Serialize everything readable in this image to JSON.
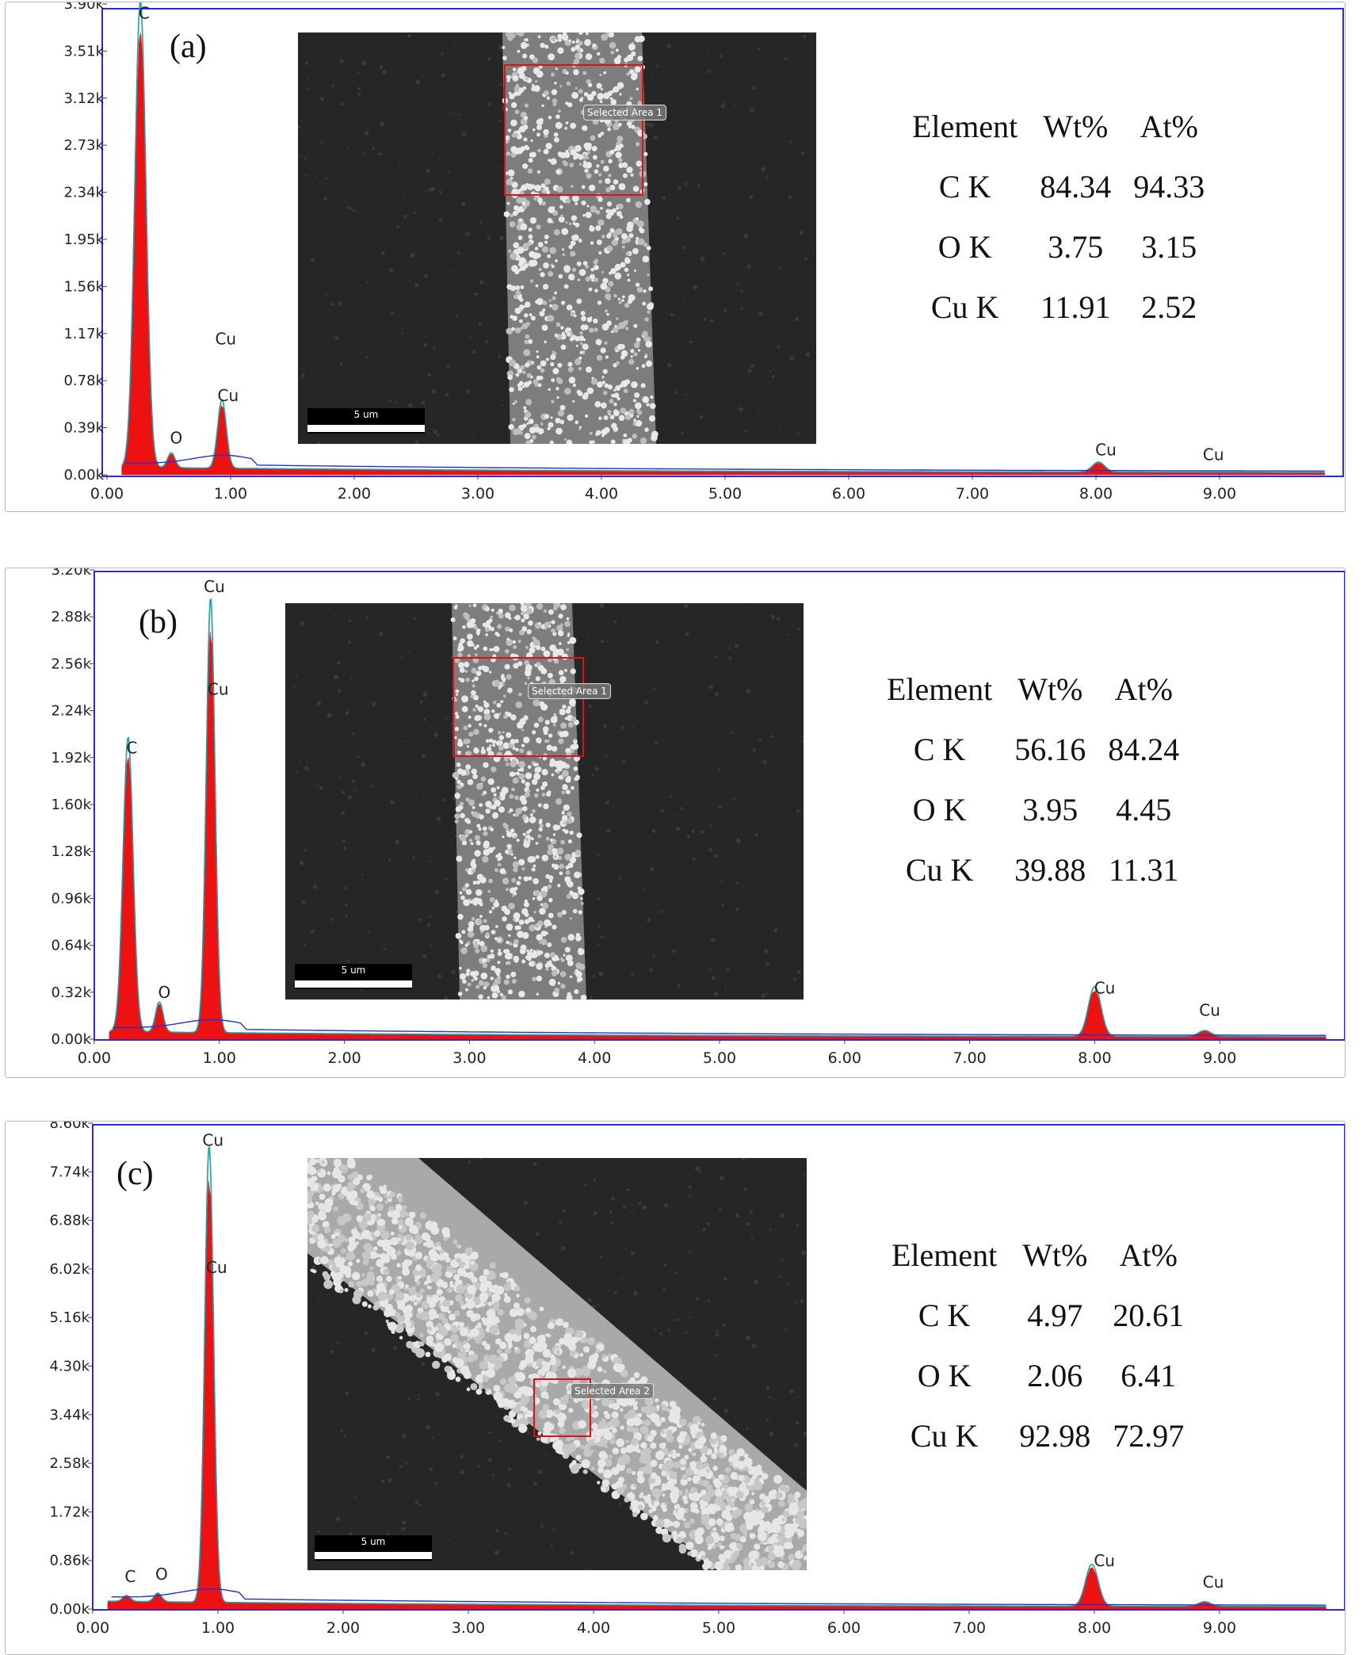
{
  "chart_data": [
    {
      "type": "area",
      "panel_label": "(a)",
      "x_ticks": [
        "0.00",
        "1.00",
        "2.00",
        "3.00",
        "4.00",
        "5.00",
        "6.00",
        "7.00",
        "8.00",
        "9.00"
      ],
      "y_ticks": [
        "0.00k",
        "0.39k",
        "0.78k",
        "1.17k",
        "1.56k",
        "1.95k",
        "2.34k",
        "2.73k",
        "3.12k",
        "3.51k",
        "3.90k"
      ],
      "xlim": [
        0,
        10
      ],
      "ylim": [
        0,
        3.9
      ],
      "peaks": [
        {
          "element": "C",
          "x": 0.27,
          "y": 3.75,
          "width": 0.045
        },
        {
          "element": "O",
          "x": 0.52,
          "y": 0.12,
          "width": 0.03
        },
        {
          "element": "Cu",
          "x": 0.93,
          "y": 0.55,
          "width": 0.035
        },
        {
          "element": "Cu",
          "x": 8.02,
          "y": 0.08,
          "width": 0.05
        }
      ],
      "peak_labels": [
        {
          "text": "C",
          "x": 0.3,
          "y": 3.78
        },
        {
          "text": "O",
          "x": 0.56,
          "y": 0.26
        },
        {
          "text": "Cu",
          "x": 0.96,
          "y": 1.08
        },
        {
          "text": "Cu",
          "x": 0.98,
          "y": 0.61
        },
        {
          "text": "Cu",
          "x": 8.08,
          "y": 0.16
        },
        {
          "text": "Cu",
          "x": 8.95,
          "y": 0.12
        }
      ],
      "table": {
        "headers": [
          "Element",
          "Wt%",
          "At%"
        ],
        "rows": [
          [
            "C K",
            "84.34",
            "94.33"
          ],
          [
            "O K",
            "3.75",
            "3.15"
          ],
          [
            "Cu K",
            "11.91",
            "2.52"
          ]
        ]
      },
      "image": {
        "selection_label": "Selected Area 1",
        "scale_label": "5 um",
        "texture": "particles-fiber"
      }
    },
    {
      "type": "area",
      "panel_label": "(b)",
      "x_ticks": [
        "0.00",
        "1.00",
        "2.00",
        "3.00",
        "4.00",
        "5.00",
        "6.00",
        "7.00",
        "8.00",
        "9.00"
      ],
      "y_ticks": [
        "0.00k",
        "0.32k",
        "0.64k",
        "0.96k",
        "1.28k",
        "1.60k",
        "1.92k",
        "2.24k",
        "2.56k",
        "2.88k",
        "3.20k"
      ],
      "xlim": [
        0,
        10
      ],
      "ylim": [
        0,
        3.2
      ],
      "peaks": [
        {
          "element": "C",
          "x": 0.27,
          "y": 1.95,
          "width": 0.04
        },
        {
          "element": "O",
          "x": 0.52,
          "y": 0.2,
          "width": 0.03
        },
        {
          "element": "Cu",
          "x": 0.93,
          "y": 2.88,
          "width": 0.035
        },
        {
          "element": "Cu",
          "x": 8.0,
          "y": 0.33,
          "width": 0.05
        },
        {
          "element": "Cu",
          "x": 8.88,
          "y": 0.04,
          "width": 0.05
        }
      ],
      "peak_labels": [
        {
          "text": "Cu",
          "x": 0.96,
          "y": 3.05
        },
        {
          "text": "Cu",
          "x": 0.99,
          "y": 2.35
        },
        {
          "text": "C",
          "x": 0.3,
          "y": 1.95
        },
        {
          "text": "O",
          "x": 0.56,
          "y": 0.28
        },
        {
          "text": "Cu",
          "x": 8.08,
          "y": 0.31
        },
        {
          "text": "Cu",
          "x": 8.92,
          "y": 0.16
        }
      ],
      "table": {
        "headers": [
          "Element",
          "Wt%",
          "At%"
        ],
        "rows": [
          [
            "C K",
            "56.16",
            "84.24"
          ],
          [
            "O K",
            "3.95",
            "4.45"
          ],
          [
            "Cu K",
            "39.88",
            "11.31"
          ]
        ]
      },
      "image": {
        "selection_label": "Selected Area 1",
        "scale_label": "5 um",
        "texture": "particles-fiber"
      }
    },
    {
      "type": "area",
      "panel_label": "(c)",
      "x_ticks": [
        "0.00",
        "1.00",
        "2.00",
        "3.00",
        "4.00",
        "5.00",
        "6.00",
        "7.00",
        "8.00",
        "9.00"
      ],
      "y_ticks": [
        "0.00k",
        "0.86k",
        "1.72k",
        "2.58k",
        "3.44k",
        "4.30k",
        "5.16k",
        "6.02k",
        "6.88k",
        "7.74k",
        "8.60k"
      ],
      "xlim": [
        0,
        10
      ],
      "ylim": [
        0,
        8.6
      ],
      "peaks": [
        {
          "element": "C",
          "x": 0.27,
          "y": 0.1,
          "width": 0.03
        },
        {
          "element": "O",
          "x": 0.52,
          "y": 0.15,
          "width": 0.03
        },
        {
          "element": "Cu",
          "x": 0.93,
          "y": 7.85,
          "width": 0.035
        },
        {
          "element": "Cu",
          "x": 7.98,
          "y": 0.72,
          "width": 0.05
        },
        {
          "element": "Cu",
          "x": 8.88,
          "y": 0.08,
          "width": 0.05
        }
      ],
      "peak_labels": [
        {
          "text": "Cu",
          "x": 0.96,
          "y": 8.2
        },
        {
          "text": "Cu",
          "x": 0.99,
          "y": 5.95
        },
        {
          "text": "C",
          "x": 0.3,
          "y": 0.48
        },
        {
          "text": "O",
          "x": 0.55,
          "y": 0.52
        },
        {
          "text": "Cu",
          "x": 8.08,
          "y": 0.76
        },
        {
          "text": "Cu",
          "x": 8.95,
          "y": 0.38
        }
      ],
      "table": {
        "headers": [
          "Element",
          "Wt%",
          "At%"
        ],
        "rows": [
          [
            "C K",
            "4.97",
            "20.61"
          ],
          [
            "O K",
            "2.06",
            "6.41"
          ],
          [
            "Cu K",
            "92.98",
            "72.97"
          ]
        ]
      },
      "image": {
        "selection_label": "Selected Area 2",
        "scale_label": "5 um",
        "texture": "dense-fiber"
      }
    }
  ],
  "colors": {
    "spectrum_fill": "#ee1111",
    "fit_line": "#1aa0a8",
    "background_line": "#2233cc",
    "frame": "#2a2ad8",
    "selection_box": "#e01010",
    "axis_text": "#222222"
  }
}
